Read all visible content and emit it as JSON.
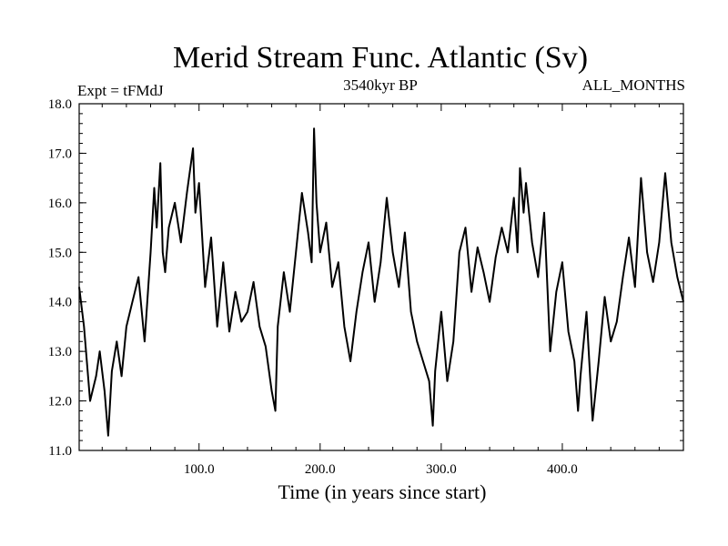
{
  "chart_data": {
    "type": "line",
    "title": "Merid Stream Func. Atlantic (Sv)",
    "subtitle_left": "Expt = tFMdJ",
    "subtitle_center": "3540kyr BP",
    "subtitle_right": "ALL_MONTHS",
    "xlabel": "Time (in years since start)",
    "ylabel": "",
    "xlim": [
      1,
      500
    ],
    "ylim": [
      11.0,
      18.0
    ],
    "x_ticks": [
      {
        "value": 100,
        "label": "100.0"
      },
      {
        "value": 200,
        "label": "200.0"
      },
      {
        "value": 300,
        "label": "300.0"
      },
      {
        "value": 400,
        "label": "400.0"
      }
    ],
    "y_ticks": [
      {
        "value": 11.0,
        "label": "11.0"
      },
      {
        "value": 12.0,
        "label": "12.0"
      },
      {
        "value": 13.0,
        "label": "13.0"
      },
      {
        "value": 14.0,
        "label": "14.0"
      },
      {
        "value": 15.0,
        "label": "15.0"
      },
      {
        "value": 16.0,
        "label": "16.0"
      },
      {
        "value": 17.0,
        "label": "17.0"
      },
      {
        "value": 18.0,
        "label": "18.0"
      }
    ],
    "grid": false,
    "series": [
      {
        "name": "Merid Stream Func. Atlantic",
        "x": [
          1,
          5,
          10,
          15,
          18,
          22,
          25,
          28,
          32,
          36,
          40,
          45,
          50,
          55,
          60,
          63,
          65,
          68,
          70,
          72,
          75,
          80,
          85,
          90,
          95,
          97,
          100,
          105,
          110,
          115,
          120,
          125,
          130,
          135,
          140,
          145,
          150,
          155,
          160,
          163,
          165,
          170,
          175,
          180,
          185,
          190,
          193,
          195,
          197,
          200,
          205,
          210,
          215,
          220,
          225,
          230,
          235,
          240,
          245,
          250,
          255,
          260,
          265,
          270,
          275,
          280,
          285,
          290,
          293,
          295,
          300,
          305,
          310,
          315,
          320,
          325,
          330,
          335,
          340,
          345,
          350,
          355,
          360,
          363,
          365,
          368,
          370,
          375,
          380,
          385,
          390,
          395,
          400,
          405,
          410,
          413,
          415,
          420,
          425,
          430,
          435,
          440,
          445,
          450,
          455,
          460,
          465,
          470,
          475,
          480,
          485,
          490,
          495,
          500
        ],
        "values": [
          14.3,
          13.5,
          12.0,
          12.5,
          13.0,
          12.2,
          11.3,
          12.6,
          13.2,
          12.5,
          13.5,
          14.0,
          14.5,
          13.2,
          15.0,
          16.3,
          15.5,
          16.8,
          15.0,
          14.6,
          15.5,
          16.0,
          15.2,
          16.2,
          17.1,
          15.8,
          16.4,
          14.3,
          15.3,
          13.5,
          14.8,
          13.4,
          14.2,
          13.6,
          13.8,
          14.4,
          13.5,
          13.1,
          12.2,
          11.8,
          13.5,
          14.6,
          13.8,
          15.0,
          16.2,
          15.4,
          14.8,
          17.5,
          16.0,
          15.0,
          15.6,
          14.3,
          14.8,
          13.5,
          12.8,
          13.8,
          14.6,
          15.2,
          14.0,
          14.8,
          16.1,
          15.0,
          14.3,
          15.4,
          13.8,
          13.2,
          12.8,
          12.4,
          11.5,
          12.6,
          13.8,
          12.4,
          13.2,
          15.0,
          15.5,
          14.2,
          15.1,
          14.6,
          14.0,
          14.9,
          15.5,
          15.0,
          16.1,
          15.0,
          16.7,
          15.8,
          16.4,
          15.2,
          14.5,
          15.8,
          13.0,
          14.2,
          14.8,
          13.4,
          12.8,
          11.8,
          12.5,
          13.8,
          11.6,
          12.8,
          14.1,
          13.2,
          13.6,
          14.5,
          15.3,
          14.3,
          16.5,
          15.0,
          14.4,
          15.2,
          16.6,
          15.2,
          14.5,
          14.0
        ]
      }
    ]
  }
}
